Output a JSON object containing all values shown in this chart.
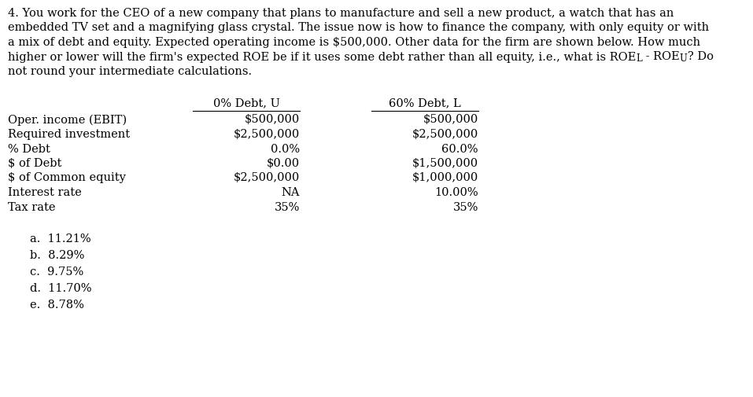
{
  "background_color": "#ffffff",
  "text_color": "#000000",
  "font_family": "DejaVu Serif",
  "font_size": 10.5,
  "fig_width": 9.57,
  "fig_height": 5.05,
  "dpi": 100,
  "paragraph_lines": [
    "4. You work for the CEO of a new company that plans to manufacture and sell a new product, a watch that has an",
    "embedded TV set and a magnifying glass crystal. The issue now is how to finance the company, with only equity or with",
    "a mix of debt and equity. Expected operating income is $500,000. Other data for the firm are shown below. How much"
  ],
  "line4_part1": "higher or lower will the firm's expected ROE be if it uses some debt rather than all equity, i.e., what is ROE",
  "line4_sub1": "L",
  "line4_part2": " - ROE",
  "line4_sub2": "U",
  "line4_part3": "? Do",
  "line5": "not round your intermediate calculations.",
  "col_headers": [
    "0% Debt, U",
    "60% Debt, L"
  ],
  "row_labels": [
    "Oper. income (EBIT)",
    "Required investment",
    "% Debt",
    "$ of Debt",
    "$ of Common equity",
    "Interest rate",
    "Tax rate"
  ],
  "col1_values": [
    "$500,000",
    "$2,500,000",
    "0.0%",
    "$0.00",
    "$2,500,000",
    "NA",
    "35%"
  ],
  "col2_values": [
    "$500,000",
    "$2,500,000",
    "60.0%",
    "$1,500,000",
    "$1,000,000",
    "10.00%",
    "35%"
  ],
  "answer_choices": [
    "a.  11.21%",
    "b.  8.29%",
    "c.  9.75%",
    "d.  11.70%",
    "e.  8.78%"
  ]
}
